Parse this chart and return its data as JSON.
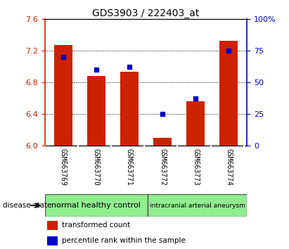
{
  "title": "GDS3903 / 222403_at",
  "samples": [
    "GSM663769",
    "GSM663770",
    "GSM663771",
    "GSM663772",
    "GSM663773",
    "GSM663774"
  ],
  "bar_values": [
    7.27,
    6.88,
    6.93,
    6.1,
    6.56,
    7.32
  ],
  "percentile_values": [
    70,
    60,
    62,
    25,
    37,
    75
  ],
  "ylim": [
    6.0,
    7.6
  ],
  "yticks": [
    6.0,
    6.4,
    6.8,
    7.2,
    7.6
  ],
  "right_yticks": [
    0,
    25,
    50,
    75,
    100
  ],
  "bar_color": "#CC2200",
  "dot_color": "#0000CC",
  "bar_width": 0.55,
  "group1_label": "normal healthy control",
  "group2_label": "intracranial arterial aneurysm",
  "disease_state_label": "disease state",
  "legend_bar_label": "transformed count",
  "legend_dot_label": "percentile rank within the sample",
  "background_color": "#FFFFFF",
  "plot_bg_color": "#FFFFFF",
  "tick_area_color": "#C8C8C8",
  "group_color": "#90EE90",
  "left_axis_color": "#CC2200",
  "right_axis_color": "#0000CC"
}
